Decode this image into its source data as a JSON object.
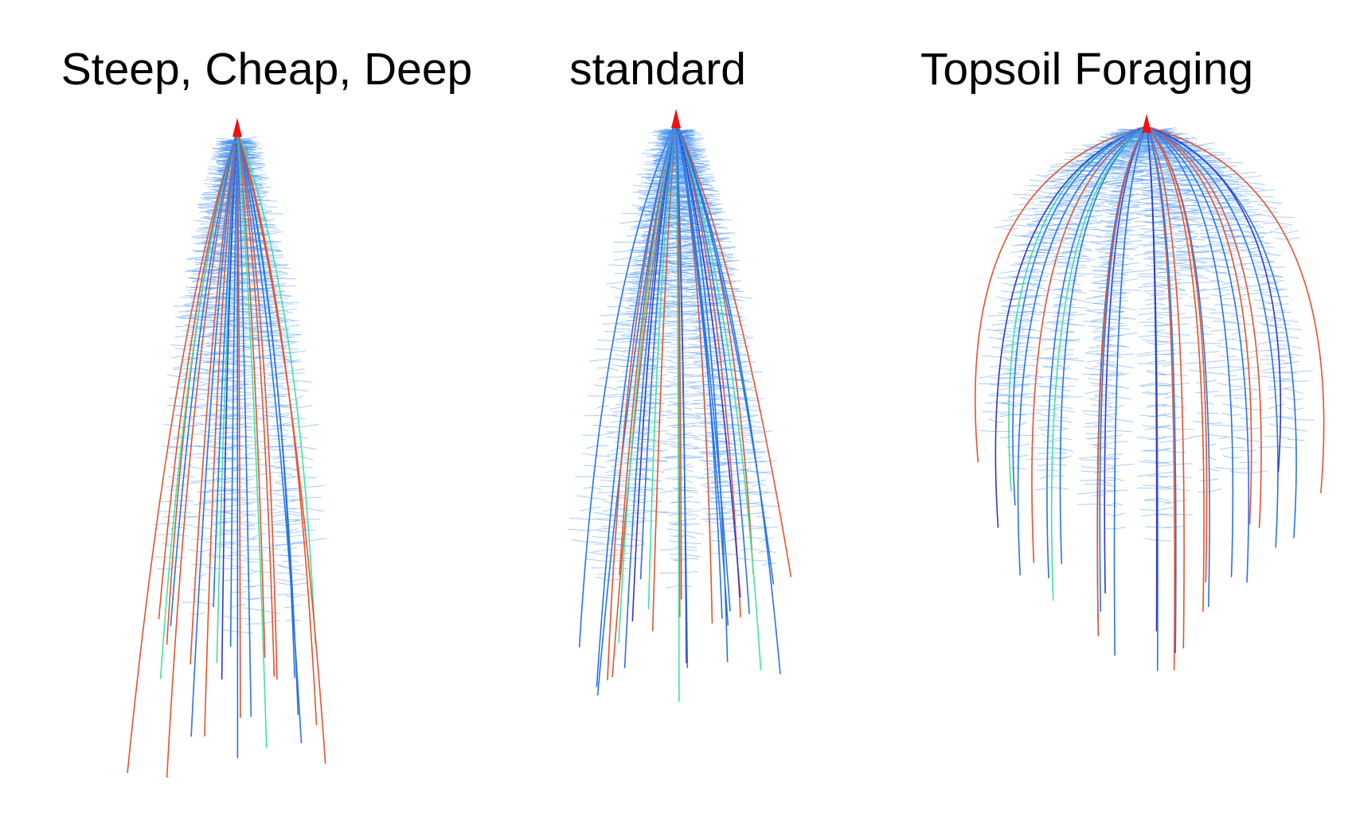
{
  "panels": [
    {
      "title": "Steep, Cheap, Deep"
    },
    {
      "title": "standard"
    },
    {
      "title": "Topsoil Foraging"
    }
  ]
}
